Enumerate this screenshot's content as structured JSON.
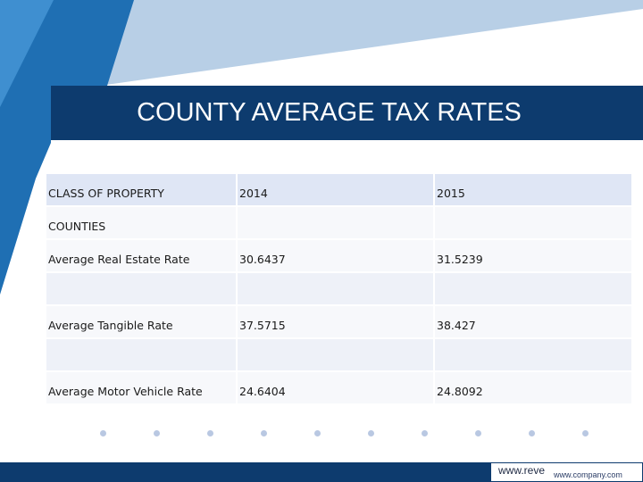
{
  "title": "COUNTY AVERAGE TAX RATES",
  "table": {
    "headers": [
      "CLASS OF PROPERTY",
      "2014",
      "2015"
    ],
    "rows": [
      [
        "COUNTIES",
        "",
        ""
      ],
      [
        "Average Real Estate Rate",
        "30.6437",
        "31.5239"
      ],
      [
        "",
        "",
        ""
      ],
      [
        "Average Tangible Rate",
        "37.5715",
        "38.427"
      ],
      [
        "",
        "",
        ""
      ],
      [
        "Average Motor Vehicle Rate",
        "24.6404",
        "24.8092"
      ]
    ]
  },
  "footer": {
    "url": "www.reve",
    "company_url": "www.company.com"
  },
  "colors": {
    "primary": "#0d3b6e",
    "deco_light": "#b8cfe6",
    "deco_mid": "#2f7dc1"
  }
}
